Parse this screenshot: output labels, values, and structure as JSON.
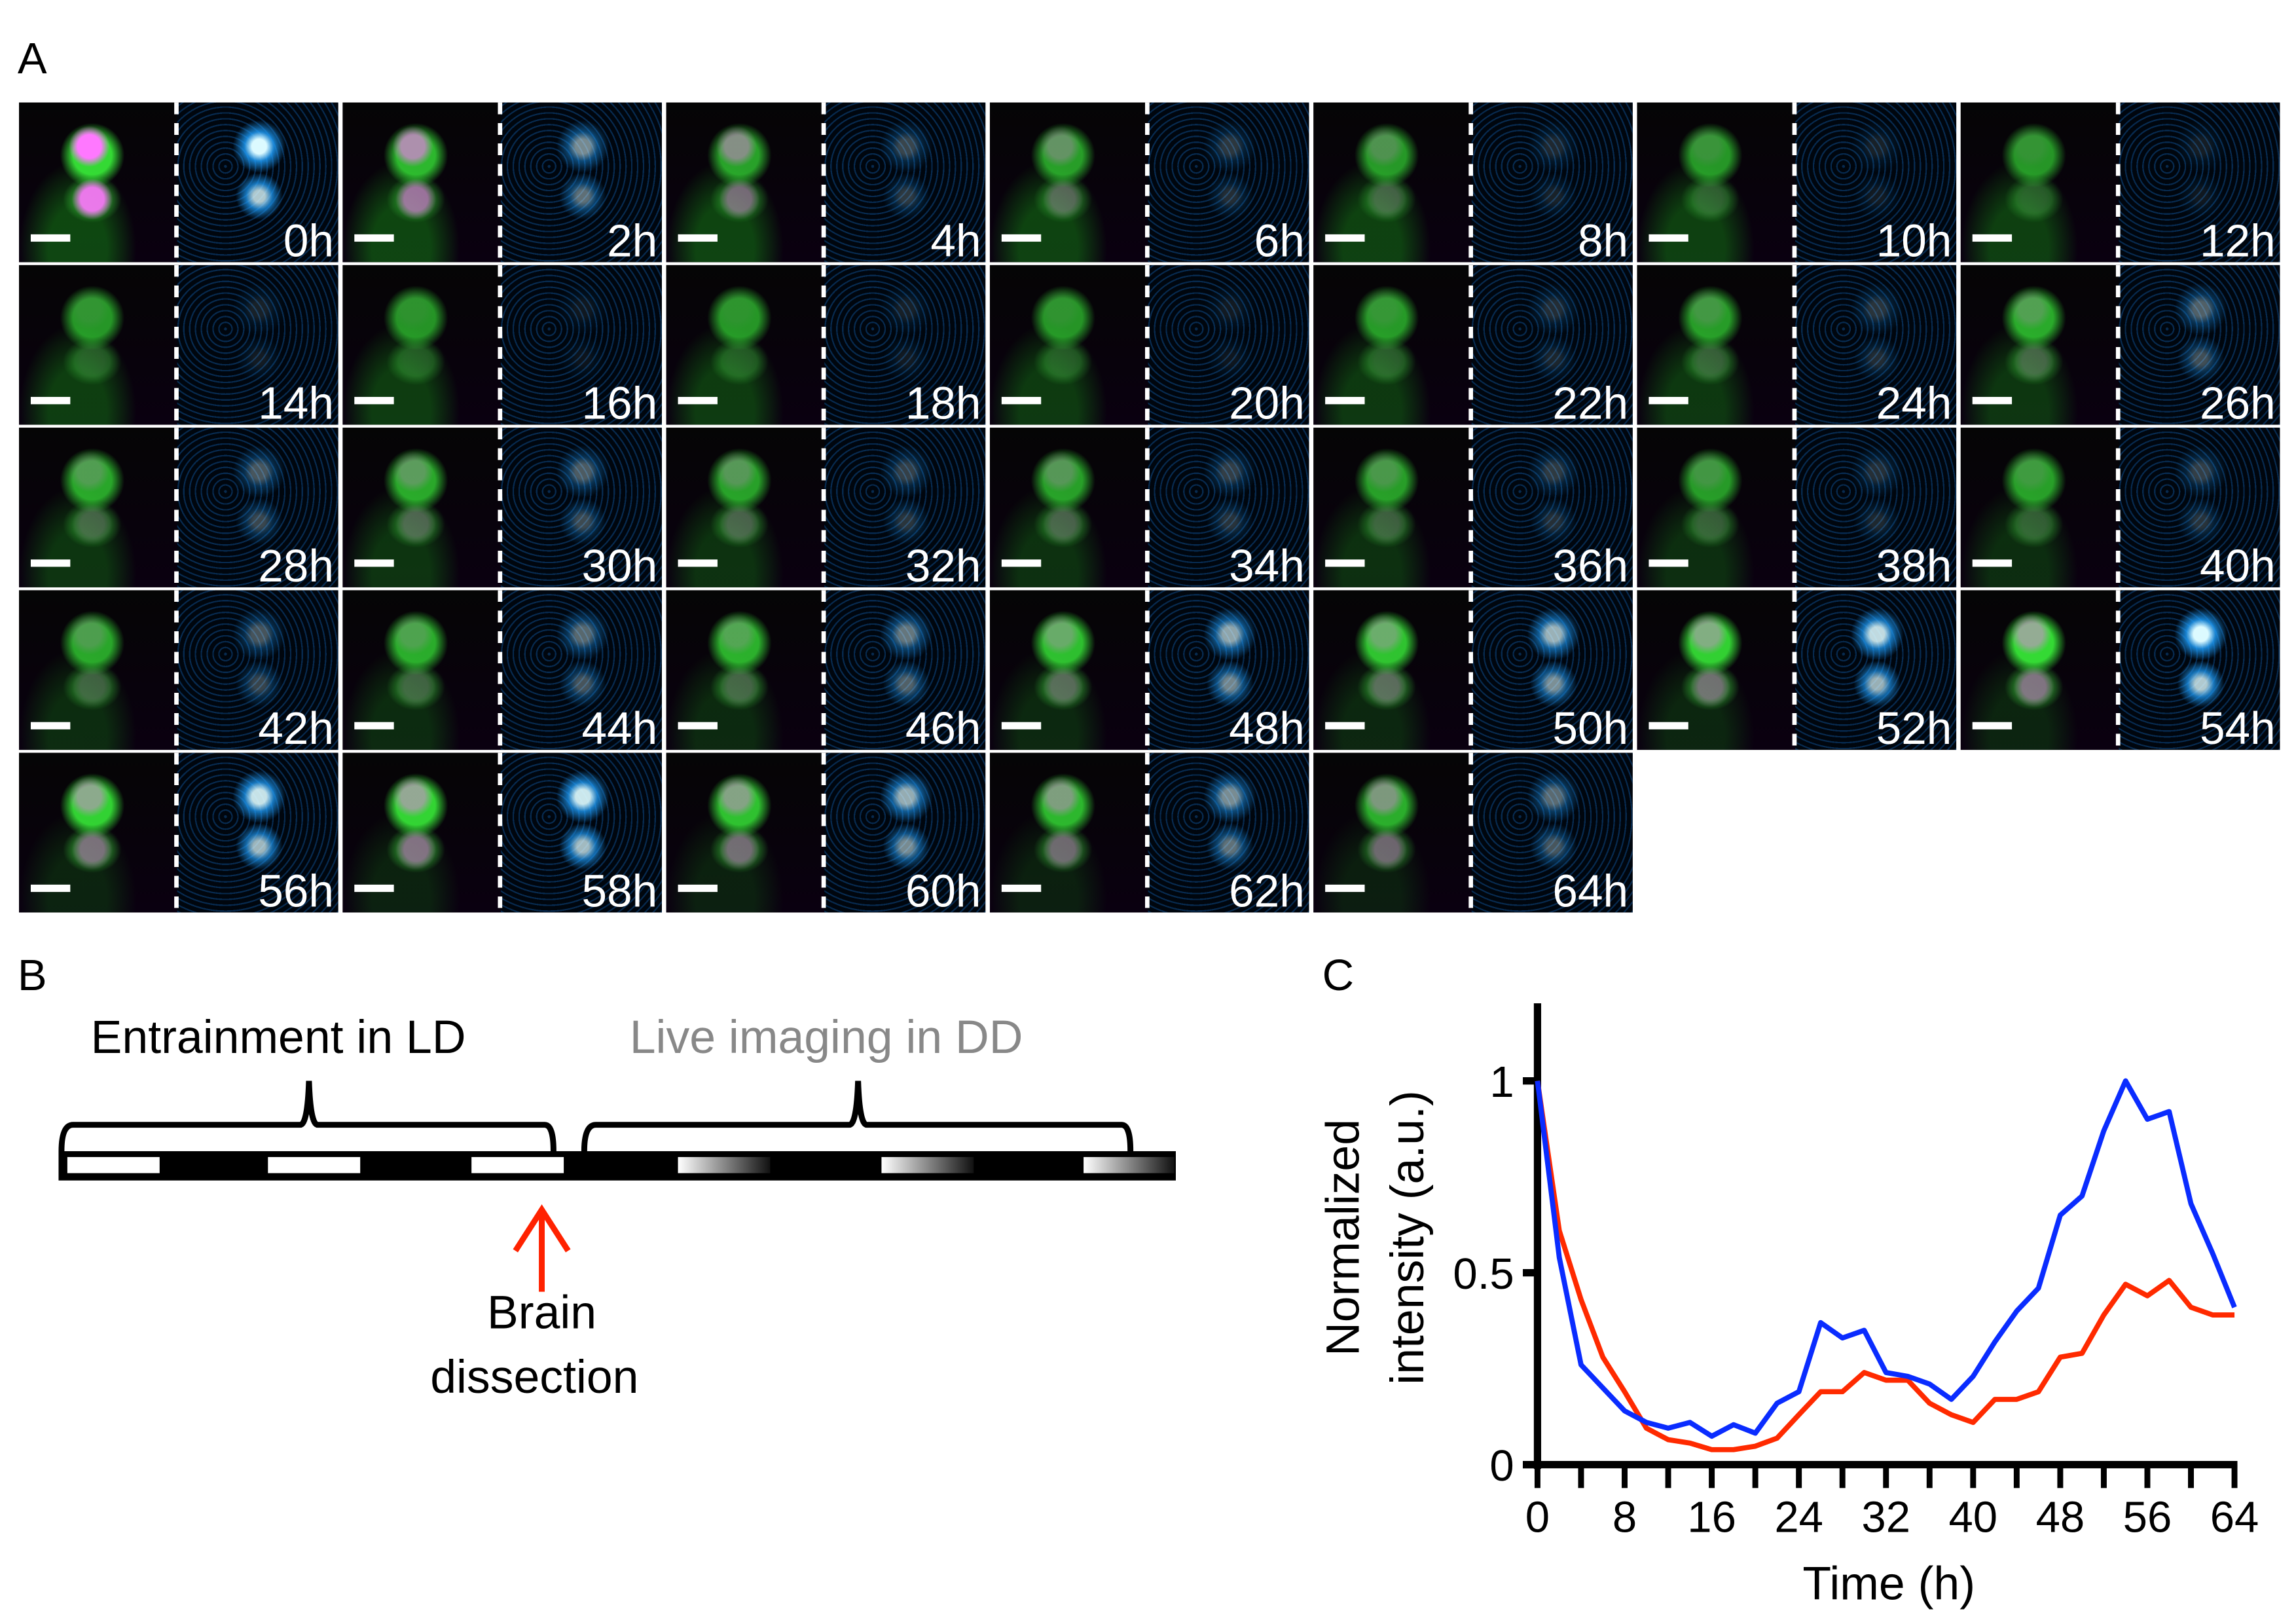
{
  "panel_a": {
    "label": "A",
    "timepoints": [
      "0h",
      "2h",
      "4h",
      "6h",
      "8h",
      "10h",
      "12h",
      "14h",
      "16h",
      "18h",
      "20h",
      "22h",
      "24h",
      "26h",
      "28h",
      "30h",
      "32h",
      "34h",
      "36h",
      "38h",
      "40h",
      "42h",
      "44h",
      "46h",
      "48h",
      "50h",
      "52h",
      "54h",
      "56h",
      "58h",
      "60h",
      "62h",
      "64h"
    ],
    "channel_colors": {
      "green": "#22e022",
      "magenta": "#d040d0",
      "cyan": "#1a9cff"
    }
  },
  "panel_b": {
    "label": "B",
    "entrainment": "Entrainment in LD",
    "live_imaging": "Live imaging in DD",
    "annotation_line1": "Brain",
    "annotation_line2": "dissection",
    "arrow_color": "#ff2200"
  },
  "panel_c": {
    "label": "C"
  },
  "chart_data": {
    "type": "line",
    "xlabel": "Time (h)",
    "ylabel": "Normalized intensity (a.u.)",
    "xlim": [
      0,
      64
    ],
    "ylim": [
      0,
      1.2
    ],
    "xticks": [
      0,
      8,
      16,
      24,
      32,
      40,
      48,
      56,
      64
    ],
    "yticks": [
      0,
      0.5,
      1
    ],
    "ytick_labels": [
      "0",
      "0.5",
      "1"
    ],
    "grid": false,
    "x": [
      0,
      2,
      4,
      6,
      8,
      10,
      12,
      14,
      16,
      18,
      20,
      22,
      24,
      26,
      28,
      30,
      32,
      34,
      36,
      38,
      40,
      42,
      44,
      46,
      48,
      50,
      52,
      54,
      56,
      58,
      60,
      62,
      64
    ],
    "series": [
      {
        "color": "#0a2cff",
        "values": [
          1.0,
          0.54,
          0.26,
          0.2,
          0.14,
          0.11,
          0.095,
          0.11,
          0.074,
          0.104,
          0.082,
          0.16,
          0.19,
          0.37,
          0.33,
          0.35,
          0.24,
          0.23,
          0.21,
          0.17,
          0.23,
          0.32,
          0.4,
          0.46,
          0.65,
          0.7,
          0.87,
          1.0,
          0.9,
          0.92,
          0.68,
          0.55,
          0.41
        ]
      },
      {
        "color": "#ff2a00",
        "values": [
          1.0,
          0.61,
          0.43,
          0.28,
          0.19,
          0.095,
          0.065,
          0.056,
          0.039,
          0.039,
          0.048,
          0.069,
          0.13,
          0.19,
          0.19,
          0.24,
          0.22,
          0.22,
          0.16,
          0.13,
          0.11,
          0.17,
          0.17,
          0.19,
          0.28,
          0.29,
          0.39,
          0.47,
          0.44,
          0.48,
          0.41,
          0.39,
          0.39
        ]
      }
    ]
  }
}
